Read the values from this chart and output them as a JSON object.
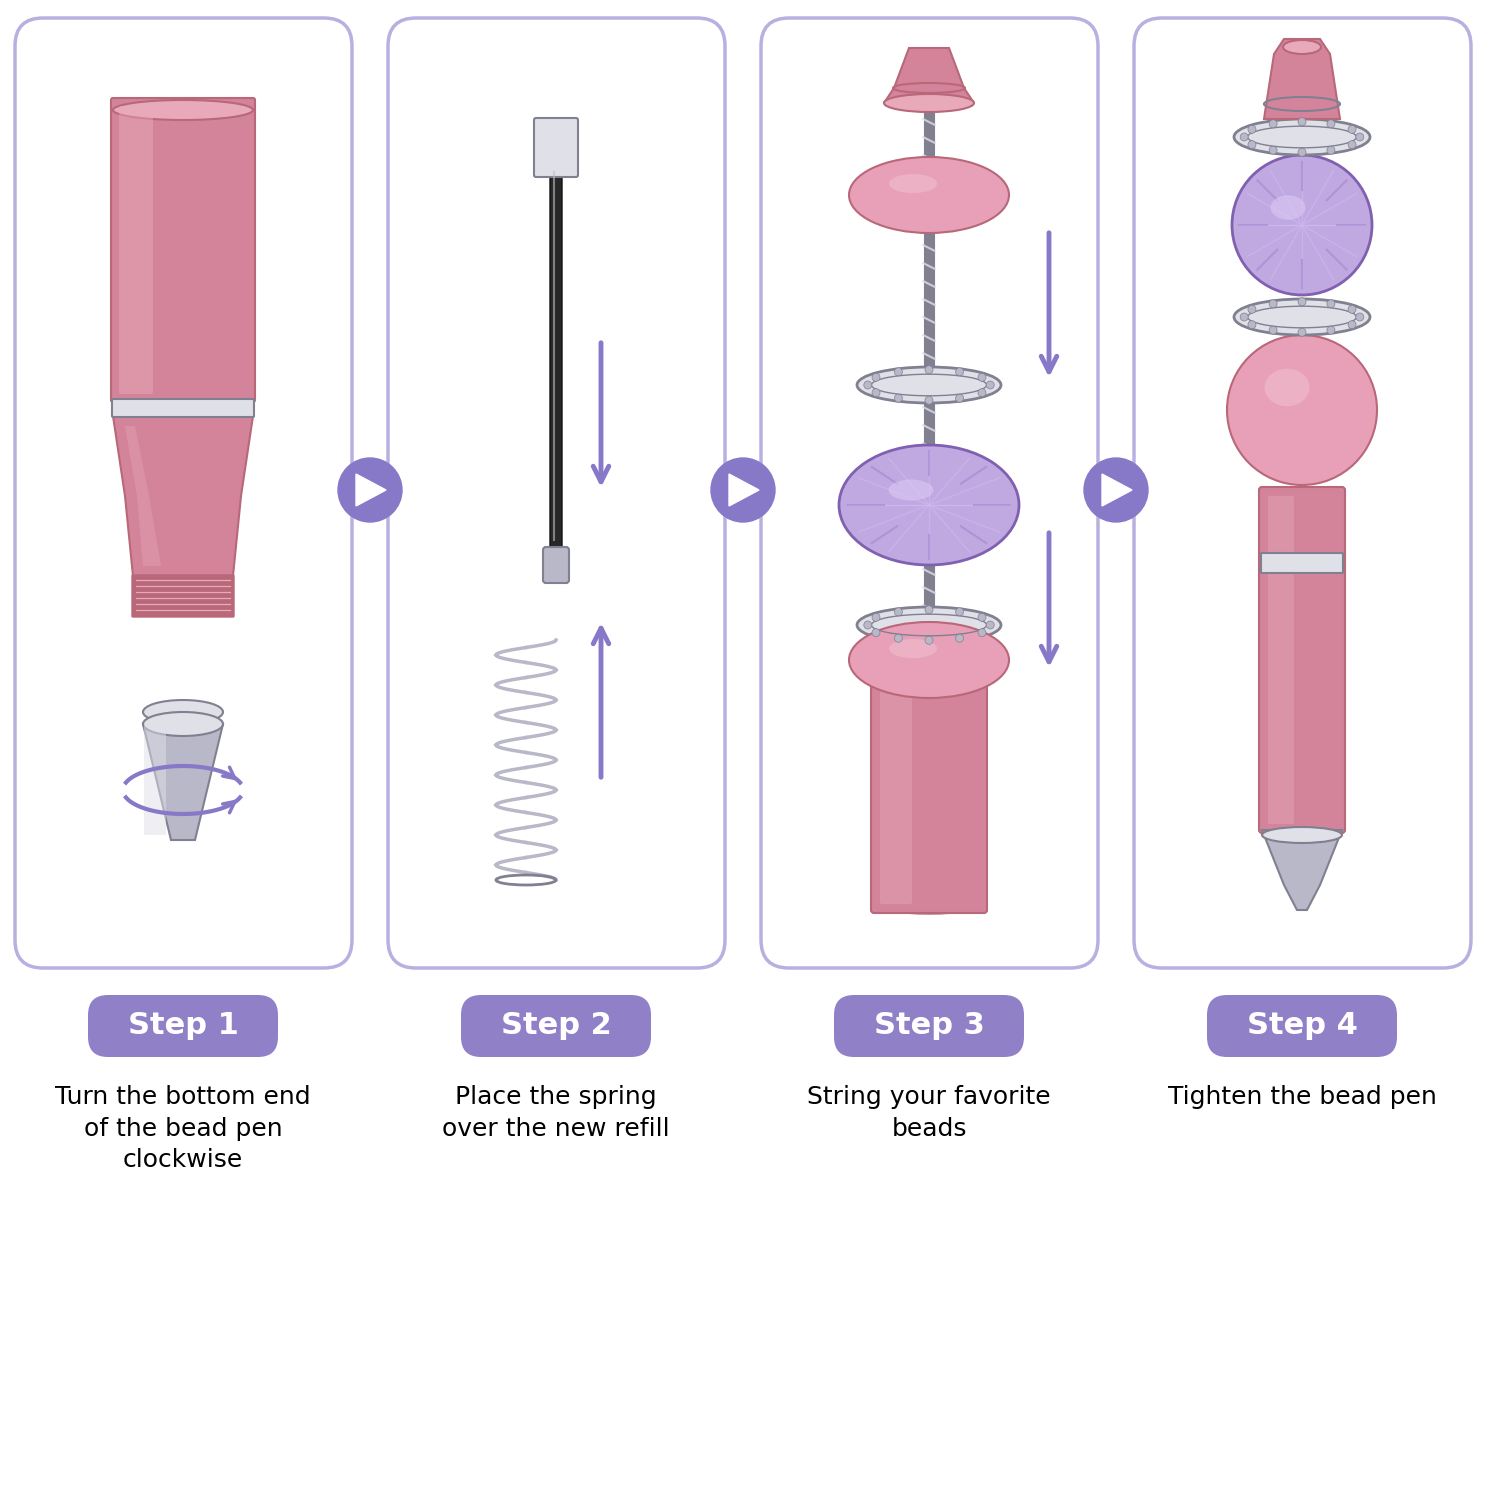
{
  "background_color": "#ffffff",
  "panel_border_color": "#b8b0e0",
  "panel_fill_color": "#ffffff",
  "arrow_color": "#8878c8",
  "pink_pen": "#d4849a",
  "pink_pen_light": "#e8aabb",
  "pink_pen_dark": "#b86878",
  "pink_bead": "#e8a0b8",
  "pink_bead_light": "#f0c0d0",
  "silver": "#b8b8c8",
  "silver_light": "#e0e0e8",
  "silver_dark": "#808090",
  "purple_crystal": "#c0a8e0",
  "purple_crystal_dark": "#8060b0",
  "black_refill": "#282828",
  "step_bg": "#9080c8",
  "step_text": "#ffffff",
  "steps": [
    "Step 1",
    "Step 2",
    "Step 3",
    "Step 4"
  ],
  "descriptions": [
    "Turn the bottom end\nof the bead pen\nclockwise",
    "Place the spring\nover the new refill",
    "String your favorite\nbeads",
    "Tighten the bead pen"
  ]
}
